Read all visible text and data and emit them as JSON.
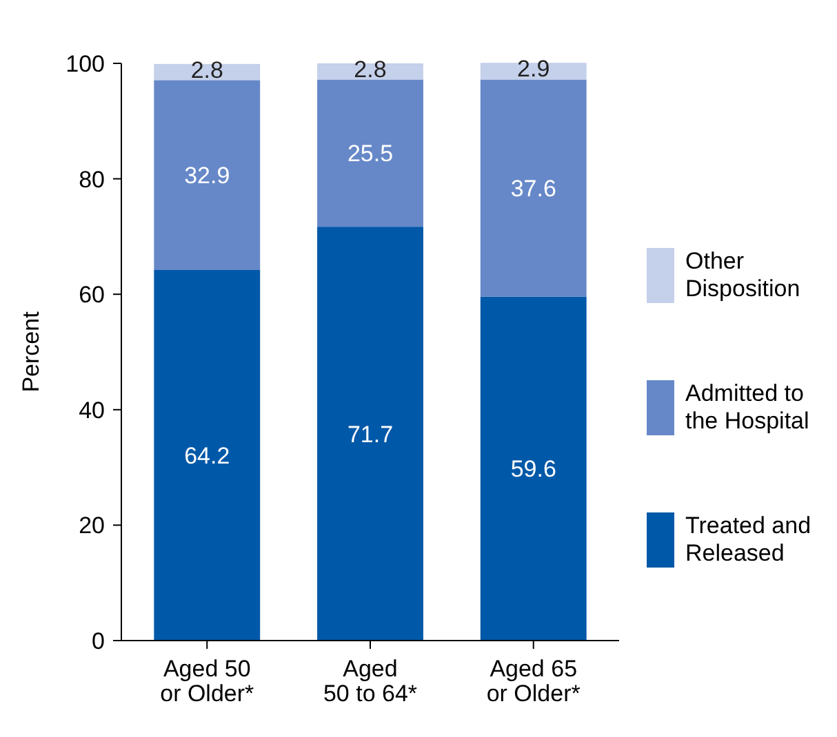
{
  "chart_data": {
    "type": "bar",
    "stacked": true,
    "ylabel": "Percent",
    "categories": [
      "Aged 50\nor Older*",
      "Aged\n50 to 64*",
      "Aged 65\nor Older*"
    ],
    "series": [
      {
        "name": "Treated and\nReleased",
        "color": "#0058a8",
        "values": [
          64.2,
          71.7,
          59.6
        ]
      },
      {
        "name": "Admitted to\nthe Hospital",
        "color": "#6688c8",
        "values": [
          32.9,
          25.5,
          37.6
        ]
      },
      {
        "name": "Other\nDisposition",
        "color": "#c5d0ea",
        "values": [
          2.8,
          2.8,
          2.9
        ]
      }
    ],
    "ylim": [
      0,
      100
    ],
    "yticks": [
      0,
      20,
      40,
      60,
      80,
      100
    ],
    "data_labels": true,
    "legend": "right"
  }
}
